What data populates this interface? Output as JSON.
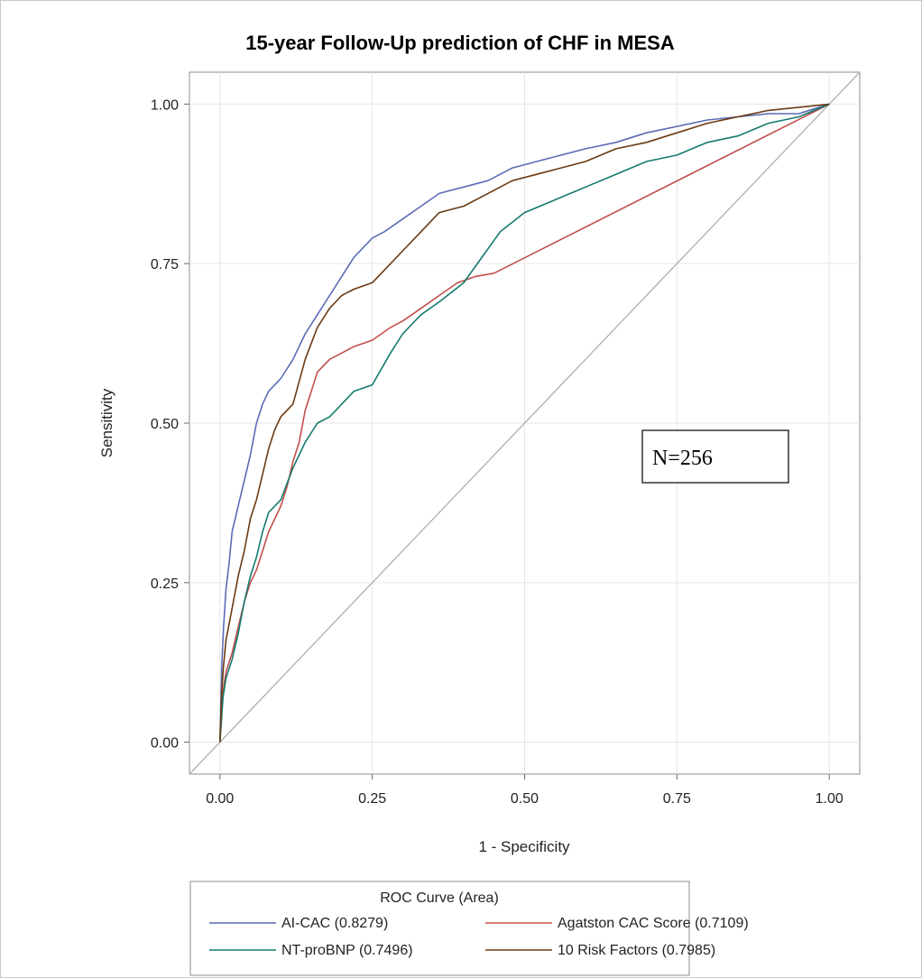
{
  "chart_data": {
    "type": "line",
    "title": "15-year Follow-Up prediction of CHF in MESA",
    "xlabel": "1 - Specificity",
    "ylabel": "Sensitivity",
    "xlim": [
      -0.05,
      1.05
    ],
    "ylim": [
      -0.05,
      1.05
    ],
    "xticks": [
      "0.00",
      "0.25",
      "0.50",
      "0.75",
      "1.00"
    ],
    "yticks": [
      "0.00",
      "0.25",
      "0.50",
      "0.75",
      "1.00"
    ],
    "grid": true,
    "reference_line": [
      [
        -0.05,
        -0.05
      ],
      [
        1.05,
        1.05
      ]
    ],
    "annotation": "N=256",
    "legend": {
      "title": "ROC Curve (Area)",
      "placement": "bottom"
    },
    "series": [
      {
        "name": "AI-CAC",
        "label": "AI-CAC  (0.8279)",
        "color": "#5b6bb5",
        "x": [
          0,
          0.003,
          0.006,
          0.01,
          0.015,
          0.02,
          0.03,
          0.04,
          0.05,
          0.06,
          0.07,
          0.08,
          0.09,
          0.1,
          0.12,
          0.14,
          0.16,
          0.18,
          0.2,
          0.22,
          0.24,
          0.25,
          0.27,
          0.3,
          0.33,
          0.36,
          0.4,
          0.44,
          0.48,
          0.52,
          0.56,
          0.6,
          0.65,
          0.7,
          0.75,
          0.8,
          0.85,
          0.9,
          0.95,
          1.0
        ],
        "y": [
          0,
          0.12,
          0.18,
          0.24,
          0.28,
          0.33,
          0.37,
          0.41,
          0.45,
          0.5,
          0.53,
          0.55,
          0.56,
          0.57,
          0.6,
          0.64,
          0.67,
          0.7,
          0.73,
          0.76,
          0.78,
          0.79,
          0.8,
          0.82,
          0.84,
          0.86,
          0.87,
          0.88,
          0.9,
          0.91,
          0.92,
          0.93,
          0.94,
          0.955,
          0.965,
          0.975,
          0.98,
          0.985,
          0.985,
          1.0
        ]
      },
      {
        "name": "Agatston CAC Score",
        "label": "Agatston CAC Score  (0.7109)",
        "color": "#c0504d",
        "x": [
          0,
          0.005,
          0.01,
          0.02,
          0.03,
          0.04,
          0.05,
          0.06,
          0.07,
          0.08,
          0.09,
          0.1,
          0.11,
          0.12,
          0.13,
          0.14,
          0.15,
          0.16,
          0.18,
          0.2,
          0.22,
          0.25,
          0.28,
          0.3,
          0.33,
          0.36,
          0.39,
          0.42,
          0.45,
          1.0
        ],
        "y": [
          0,
          0.08,
          0.11,
          0.14,
          0.18,
          0.22,
          0.25,
          0.27,
          0.3,
          0.33,
          0.35,
          0.37,
          0.4,
          0.44,
          0.47,
          0.52,
          0.55,
          0.58,
          0.6,
          0.61,
          0.62,
          0.63,
          0.65,
          0.66,
          0.68,
          0.7,
          0.72,
          0.73,
          0.735,
          1.0
        ]
      },
      {
        "name": "NT-proBNP",
        "label": "NT-proBNP  (0.7496)",
        "color": "#157a6e",
        "x": [
          0,
          0.005,
          0.01,
          0.02,
          0.03,
          0.04,
          0.05,
          0.06,
          0.07,
          0.08,
          0.1,
          0.12,
          0.14,
          0.16,
          0.18,
          0.2,
          0.22,
          0.25,
          0.28,
          0.3,
          0.33,
          0.36,
          0.4,
          0.43,
          0.46,
          0.5,
          0.55,
          0.6,
          0.65,
          0.7,
          0.75,
          0.8,
          0.85,
          0.9,
          0.95,
          1.0
        ],
        "y": [
          0,
          0.07,
          0.1,
          0.13,
          0.17,
          0.22,
          0.26,
          0.29,
          0.33,
          0.36,
          0.38,
          0.43,
          0.47,
          0.5,
          0.51,
          0.53,
          0.55,
          0.56,
          0.61,
          0.64,
          0.67,
          0.69,
          0.72,
          0.76,
          0.8,
          0.83,
          0.85,
          0.87,
          0.89,
          0.91,
          0.92,
          0.94,
          0.95,
          0.97,
          0.98,
          1.0
        ]
      },
      {
        "name": "10 Risk Factors",
        "label": "10 Risk Factors  (0.7985)",
        "color": "#6b3a12",
        "x": [
          0,
          0.003,
          0.006,
          0.01,
          0.02,
          0.03,
          0.04,
          0.05,
          0.06,
          0.07,
          0.08,
          0.09,
          0.1,
          0.12,
          0.14,
          0.16,
          0.18,
          0.2,
          0.22,
          0.25,
          0.28,
          0.3,
          0.33,
          0.36,
          0.4,
          0.44,
          0.48,
          0.52,
          0.56,
          0.6,
          0.65,
          0.7,
          0.75,
          0.8,
          0.85,
          0.9,
          0.95,
          1.0
        ],
        "y": [
          0,
          0.08,
          0.12,
          0.16,
          0.21,
          0.26,
          0.3,
          0.35,
          0.38,
          0.42,
          0.46,
          0.49,
          0.51,
          0.53,
          0.6,
          0.65,
          0.68,
          0.7,
          0.71,
          0.72,
          0.75,
          0.77,
          0.8,
          0.83,
          0.84,
          0.86,
          0.88,
          0.89,
          0.9,
          0.91,
          0.93,
          0.94,
          0.955,
          0.97,
          0.98,
          0.99,
          0.995,
          1.0
        ]
      }
    ]
  }
}
